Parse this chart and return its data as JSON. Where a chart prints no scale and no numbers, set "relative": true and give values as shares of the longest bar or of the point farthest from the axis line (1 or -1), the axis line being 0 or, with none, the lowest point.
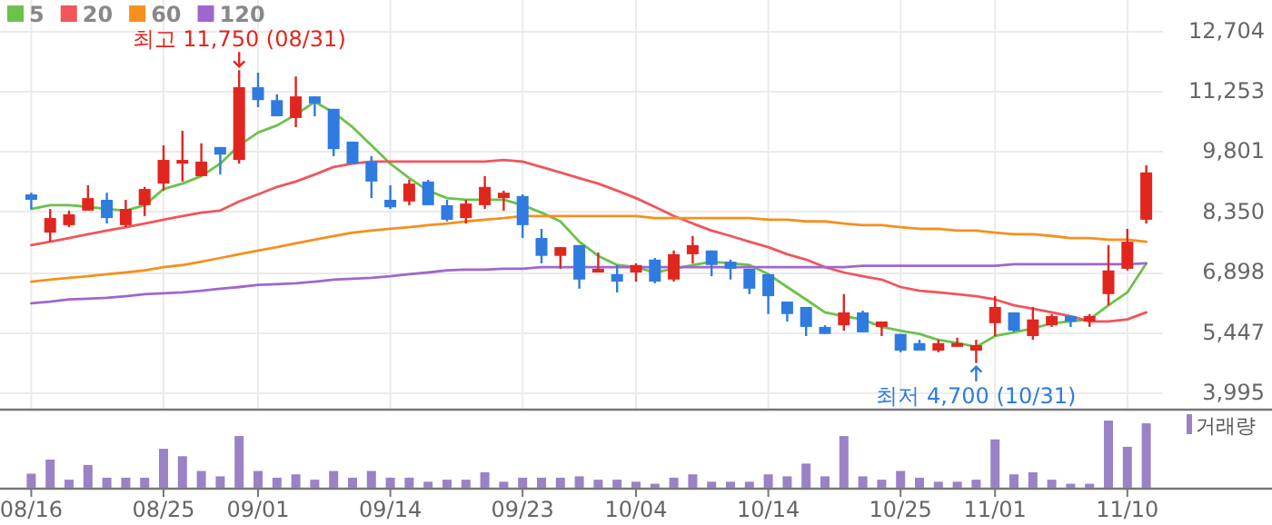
{
  "chart_data": [
    {
      "type": "candlestick",
      "categories": [
        null,
        null,
        null,
        null,
        null,
        null,
        null,
        null,
        null,
        null,
        null,
        null,
        null,
        null,
        null,
        null,
        null,
        null,
        null,
        null,
        null,
        null,
        null,
        null,
        null,
        null,
        null,
        null,
        null,
        null,
        null,
        null,
        null,
        null,
        null,
        null,
        null,
        null,
        null,
        null,
        null,
        null,
        null,
        null,
        null,
        null,
        null,
        null,
        null,
        null,
        null,
        null,
        null,
        null,
        null,
        null,
        null,
        null,
        null,
        null
      ],
      "ohlc": [
        [
          8760,
          8800,
          8410,
          8630
        ],
        [
          7840,
          8410,
          7620,
          8190
        ],
        [
          8020,
          8370,
          7970,
          8280
        ],
        [
          8370,
          8980,
          8370,
          8670
        ],
        [
          8630,
          8800,
          8060,
          8190
        ],
        [
          8020,
          8630,
          7970,
          8410
        ],
        [
          8500,
          8940,
          8240,
          8890
        ],
        [
          9020,
          9940,
          8850,
          9590
        ],
        [
          9500,
          10290,
          9070,
          9590
        ],
        [
          9200,
          9990,
          9200,
          9550
        ],
        [
          9900,
          9900,
          9240,
          9720
        ],
        [
          9590,
          11750,
          9500,
          11340
        ],
        [
          11340,
          11690,
          10860,
          11030
        ],
        [
          11030,
          11170,
          10640,
          10640
        ],
        [
          10600,
          11600,
          10380,
          11120
        ],
        [
          11120,
          11120,
          10640,
          10950
        ],
        [
          10820,
          10820,
          9680,
          9850
        ],
        [
          10030,
          10030,
          9500,
          9500
        ],
        [
          9550,
          9680,
          8670,
          9070
        ],
        [
          8630,
          8980,
          8410,
          8450
        ],
        [
          8590,
          9110,
          8500,
          9020
        ],
        [
          9070,
          9110,
          8500,
          8500
        ],
        [
          8500,
          8630,
          8110,
          8150
        ],
        [
          8190,
          8630,
          8060,
          8540
        ],
        [
          8500,
          9200,
          8410,
          8940
        ],
        [
          8670,
          8850,
          8370,
          8800
        ],
        [
          8720,
          8760,
          7710,
          8020
        ],
        [
          7710,
          7930,
          7100,
          7280
        ],
        [
          7280,
          7490,
          6970,
          7490
        ],
        [
          7540,
          7540,
          6490,
          6710
        ],
        [
          6880,
          7360,
          6880,
          6970
        ],
        [
          6840,
          7060,
          6400,
          6660
        ],
        [
          6880,
          7100,
          6660,
          7060
        ],
        [
          7190,
          7230,
          6620,
          6660
        ],
        [
          6710,
          7410,
          6660,
          7320
        ],
        [
          7320,
          7760,
          7100,
          7540
        ],
        [
          7410,
          7410,
          6790,
          7060
        ],
        [
          7140,
          7190,
          6710,
          6970
        ],
        [
          6970,
          6970,
          6360,
          6490
        ],
        [
          6840,
          6840,
          5880,
          6310
        ],
        [
          6180,
          6180,
          5700,
          5880
        ],
        [
          6050,
          6050,
          5350,
          5570
        ],
        [
          5570,
          5610,
          5400,
          5400
        ],
        [
          5610,
          6360,
          5480,
          5920
        ],
        [
          5920,
          5960,
          5440,
          5440
        ],
        [
          5570,
          5700,
          5350,
          5700
        ],
        [
          5400,
          5400,
          4960,
          5000
        ],
        [
          5180,
          5260,
          5000,
          5000
        ],
        [
          5000,
          5260,
          4960,
          5180
        ],
        [
          5090,
          5310,
          5090,
          5180
        ],
        [
          5000,
          5260,
          4700,
          5130
        ],
        [
          5660,
          6310,
          5350,
          6050
        ],
        [
          5920,
          5920,
          5450,
          5480
        ],
        [
          5350,
          6050,
          5260,
          5750
        ],
        [
          5610,
          5880,
          5570,
          5830
        ],
        [
          5830,
          5830,
          5570,
          5700
        ],
        [
          5700,
          5880,
          5570,
          5830
        ],
        [
          6360,
          7540,
          6090,
          6930
        ],
        [
          6970,
          7930,
          6930,
          7620
        ],
        [
          8150,
          9460,
          8060,
          9290
        ]
      ],
      "colors": [
        "#2f7be0",
        "#e0261f",
        "#e0261f",
        "#e0261f",
        "#2f7be0",
        "#e0261f",
        "#e0261f",
        "#e0261f",
        "#e0261f",
        "#e0261f",
        "#2f7be0",
        "#e0261f",
        "#2f7be0",
        "#2f7be0",
        "#e0261f",
        "#2f7be0",
        "#2f7be0",
        "#2f7be0",
        "#2f7be0",
        "#2f7be0",
        "#e0261f",
        "#2f7be0",
        "#2f7be0",
        "#e0261f",
        "#e0261f",
        "#e0261f",
        "#2f7be0",
        "#2f7be0",
        "#e0261f",
        "#2f7be0",
        "#e0261f",
        "#2f7be0",
        "#e0261f",
        "#2f7be0",
        "#e0261f",
        "#e0261f",
        "#2f7be0",
        "#2f7be0",
        "#2f7be0",
        "#2f7be0",
        "#2f7be0",
        "#2f7be0",
        "#2f7be0",
        "#e0261f",
        "#2f7be0",
        "#e0261f",
        "#2f7be0",
        "#2f7be0",
        "#e0261f",
        "#e0261f",
        "#e0261f",
        "#e0261f",
        "#2f7be0",
        "#e0261f",
        "#e0261f",
        "#2f7be0",
        "#e0261f",
        "#e0261f",
        "#e0261f",
        "#e0261f"
      ],
      "series": [
        {
          "name": "5",
          "type": "line",
          "color": "#6cc24a",
          "values": [
            8410,
            8500,
            8500,
            8460,
            8410,
            8370,
            8500,
            8890,
            9020,
            9200,
            9500,
            9940,
            10250,
            10420,
            10680,
            10990,
            10730,
            10380,
            9940,
            9500,
            9150,
            8850,
            8670,
            8630,
            8630,
            8630,
            8500,
            8320,
            8110,
            7620,
            7280,
            7060,
            7010,
            6880,
            6970,
            7060,
            7140,
            7100,
            7060,
            6840,
            6530,
            6230,
            5920,
            5830,
            5750,
            5570,
            5480,
            5400,
            5260,
            5180,
            5090,
            5350,
            5440,
            5530,
            5660,
            5700,
            5750,
            6090,
            6400,
            7100
          ]
        },
        {
          "name": "20",
          "type": "line",
          "color": "#f0565a",
          "values": [
            7540,
            7620,
            7710,
            7800,
            7890,
            7970,
            8060,
            8150,
            8240,
            8320,
            8370,
            8590,
            8760,
            8940,
            9070,
            9240,
            9420,
            9500,
            9550,
            9550,
            9550,
            9550,
            9550,
            9550,
            9550,
            9590,
            9550,
            9420,
            9290,
            9150,
            9020,
            8850,
            8670,
            8460,
            8240,
            8060,
            7890,
            7760,
            7620,
            7490,
            7320,
            7190,
            7010,
            6880,
            6790,
            6710,
            6530,
            6440,
            6400,
            6360,
            6310,
            6230,
            6090,
            6010,
            5920,
            5830,
            5700,
            5700,
            5750,
            5920
          ]
        },
        {
          "name": "60",
          "type": "line",
          "color": "#f5901e",
          "values": [
            6660,
            6710,
            6750,
            6790,
            6840,
            6880,
            6930,
            7010,
            7060,
            7140,
            7230,
            7320,
            7410,
            7490,
            7580,
            7670,
            7760,
            7840,
            7890,
            7930,
            7970,
            8020,
            8060,
            8110,
            8150,
            8190,
            8240,
            8240,
            8240,
            8240,
            8240,
            8240,
            8240,
            8190,
            8190,
            8190,
            8190,
            8190,
            8190,
            8150,
            8150,
            8110,
            8110,
            8060,
            8020,
            8020,
            7970,
            7930,
            7930,
            7890,
            7890,
            7840,
            7800,
            7800,
            7760,
            7710,
            7710,
            7670,
            7670,
            7620
          ]
        },
        {
          "name": "120",
          "type": "line",
          "color": "#a066d0",
          "values": [
            6140,
            6180,
            6230,
            6250,
            6270,
            6310,
            6360,
            6380,
            6400,
            6440,
            6490,
            6530,
            6580,
            6600,
            6620,
            6660,
            6710,
            6730,
            6750,
            6790,
            6840,
            6880,
            6930,
            6950,
            6950,
            6970,
            6970,
            7010,
            7010,
            7010,
            7010,
            7010,
            7010,
            7010,
            7010,
            7010,
            7010,
            7010,
            7010,
            7010,
            7010,
            7010,
            7010,
            7010,
            7040,
            7040,
            7040,
            7040,
            7040,
            7040,
            7040,
            7040,
            7080,
            7080,
            7080,
            7080,
            7080,
            7080,
            7080,
            7100
          ]
        }
      ],
      "ylim": [
        3600,
        13440
      ],
      "yticks": [
        {
          "value": 3995,
          "label": "3,995"
        },
        {
          "value": 5447,
          "label": "5,447"
        },
        {
          "value": 6898,
          "label": "6,898"
        },
        {
          "value": 8350,
          "label": "8,350"
        },
        {
          "value": 9801,
          "label": "9,801"
        },
        {
          "value": 11253,
          "label": "11,253"
        },
        {
          "value": 12704,
          "label": "12,704"
        }
      ],
      "grid": true,
      "legend": "top left",
      "tick_labels": "y",
      "annotations": [
        {
          "text": "최고 11,750 (08/31)",
          "y": 11750
        },
        {
          "text": "최저 4,700 (10/31)",
          "y": 4700
        }
      ]
    },
    {
      "type": "bar",
      "categories": [
        "08/16",
        null,
        null,
        null,
        null,
        null,
        null,
        "08/25",
        null,
        null,
        null,
        null,
        "09/01",
        null,
        null,
        null,
        null,
        null,
        null,
        "09/14",
        null,
        null,
        null,
        null,
        null,
        null,
        "09/23",
        null,
        null,
        null,
        null,
        null,
        "10/04",
        null,
        null,
        null,
        null,
        null,
        null,
        "10/14",
        null,
        null,
        null,
        null,
        null,
        null,
        "10/25",
        null,
        null,
        null,
        null,
        "11/01",
        null,
        null,
        null,
        null,
        null,
        null,
        "11/10",
        null
      ],
      "series": [
        {
          "name": "거래량",
          "color": "#9a82c6",
          "values": [
            0.21,
            0.42,
            0.12,
            0.34,
            0.15,
            0.15,
            0.15,
            0.58,
            0.47,
            0.25,
            0.17,
            0.77,
            0.25,
            0.15,
            0.2,
            0.12,
            0.25,
            0.15,
            0.25,
            0.15,
            0.15,
            0.09,
            0.12,
            0.12,
            0.23,
            0.09,
            0.15,
            0.15,
            0.15,
            0.17,
            0.12,
            0.12,
            0.09,
            0.06,
            0.15,
            0.2,
            0.09,
            0.09,
            0.09,
            0.2,
            0.17,
            0.36,
            0.17,
            0.77,
            0.17,
            0.12,
            0.25,
            0.15,
            0.09,
            0.09,
            0.12,
            0.72,
            0.2,
            0.23,
            0.12,
            0.06,
            0.06,
            1,
            0.61,
            0.96
          ]
        }
      ],
      "relative": true,
      "legend": "top right",
      "tick_labels": "x"
    }
  ]
}
